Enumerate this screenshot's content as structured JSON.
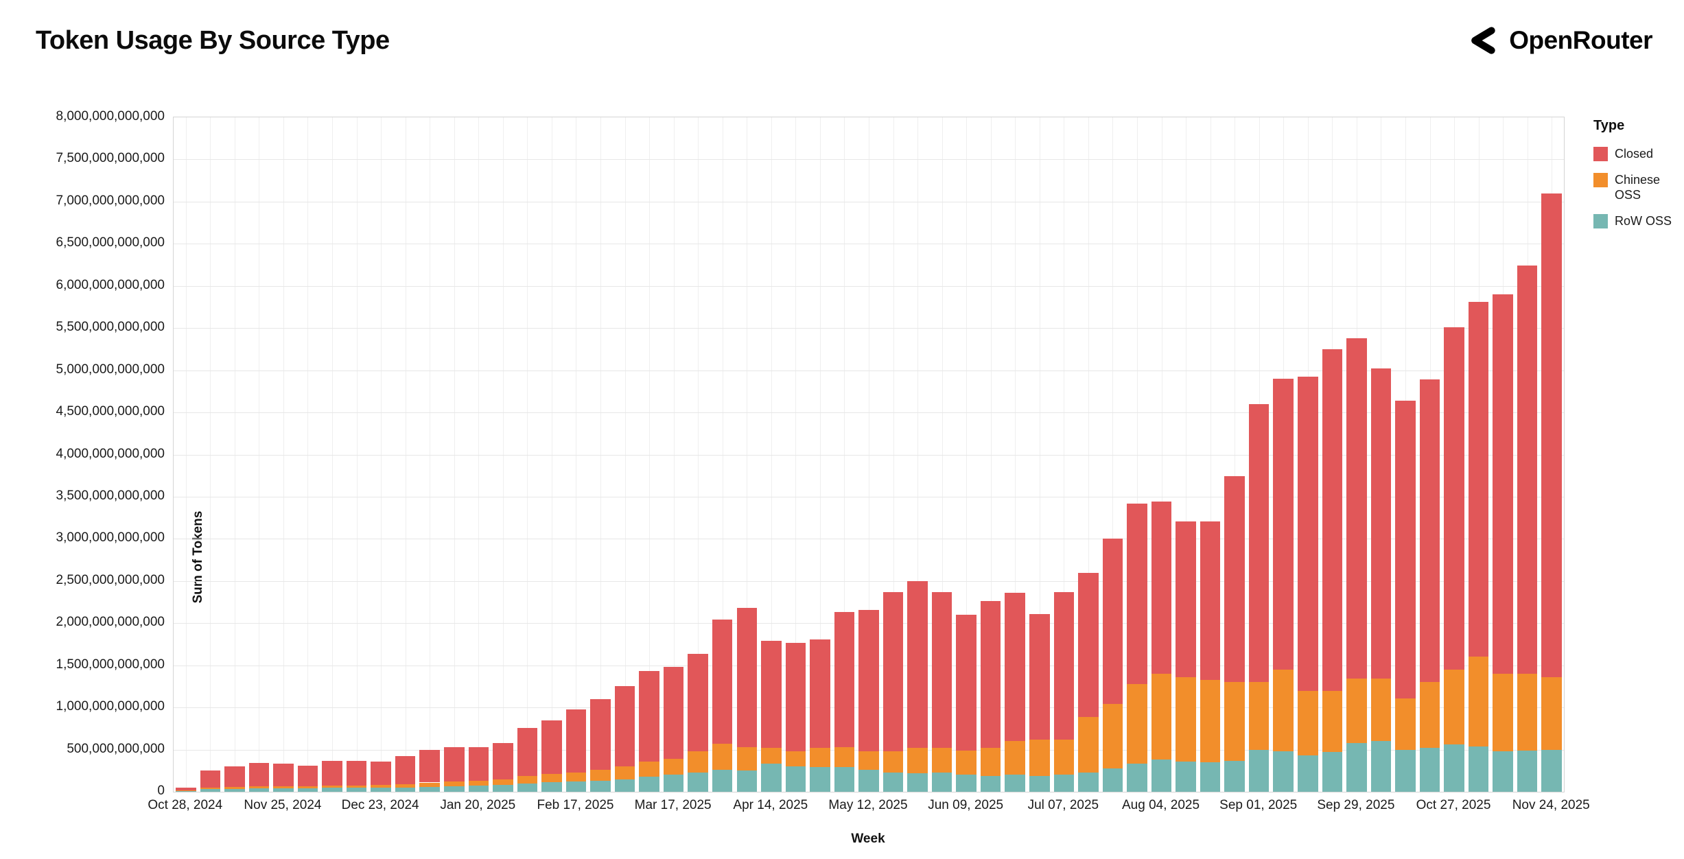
{
  "header": {
    "title": "Token Usage By Source Type",
    "brand": "OpenRouter"
  },
  "chart_data": {
    "type": "bar",
    "stacked": true,
    "title": "Token Usage By Source Type",
    "xlabel": "Week",
    "ylabel": "Sum of Tokens",
    "values_unit": "billions of tokens",
    "ylim_billions": [
      0,
      8000
    ],
    "y_tick_step_billions": 500,
    "y_tick_labels": [
      "0",
      "500,000,000,000",
      "1,000,000,000,000",
      "1,500,000,000,000",
      "2,000,000,000,000",
      "2,500,000,000,000",
      "3,000,000,000,000",
      "3,500,000,000,000",
      "4,000,000,000,000",
      "4,500,000,000,000",
      "5,000,000,000,000",
      "5,500,000,000,000",
      "6,000,000,000,000",
      "6,500,000,000,000",
      "7,000,000,000,000",
      "7,500,000,000,000",
      "8,000,000,000,000"
    ],
    "x_tick_every": 4,
    "grid": true,
    "legend_position": "right",
    "categories": [
      "Oct 28, 2024",
      "Nov 04, 2024",
      "Nov 11, 2024",
      "Nov 18, 2024",
      "Nov 25, 2024",
      "Dec 02, 2024",
      "Dec 09, 2024",
      "Dec 16, 2024",
      "Dec 23, 2024",
      "Dec 30, 2024",
      "Jan 06, 2025",
      "Jan 13, 2025",
      "Jan 20, 2025",
      "Jan 27, 2025",
      "Feb 03, 2025",
      "Feb 10, 2025",
      "Feb 17, 2025",
      "Feb 24, 2025",
      "Mar 03, 2025",
      "Mar 10, 2025",
      "Mar 17, 2025",
      "Mar 24, 2025",
      "Mar 31, 2025",
      "Apr 07, 2025",
      "Apr 14, 2025",
      "Apr 21, 2025",
      "Apr 28, 2025",
      "May 05, 2025",
      "May 12, 2025",
      "May 19, 2025",
      "May 26, 2025",
      "Jun 02, 2025",
      "Jun 09, 2025",
      "Jun 16, 2025",
      "Jun 23, 2025",
      "Jun 30, 2025",
      "Jul 07, 2025",
      "Jul 14, 2025",
      "Jul 21, 2025",
      "Jul 28, 2025",
      "Aug 04, 2025",
      "Aug 11, 2025",
      "Aug 18, 2025",
      "Aug 25, 2025",
      "Sep 01, 2025",
      "Sep 08, 2025",
      "Sep 15, 2025",
      "Sep 22, 2025",
      "Sep 29, 2025",
      "Oct 06, 2025",
      "Oct 13, 2025",
      "Oct 20, 2025",
      "Oct 27, 2025",
      "Nov 03, 2025",
      "Nov 10, 2025",
      "Nov 17, 2025",
      "Nov 24, 2025"
    ],
    "series": [
      {
        "name": "RoW OSS",
        "color": "#76b7b2",
        "values_billions": [
          10,
          30,
          35,
          40,
          40,
          40,
          45,
          45,
          50,
          50,
          60,
          65,
          70,
          80,
          100,
          110,
          120,
          130,
          150,
          180,
          200,
          230,
          260,
          250,
          330,
          300,
          290,
          290,
          260,
          230,
          220,
          230,
          200,
          190,
          200,
          190,
          200,
          230,
          280,
          330,
          380,
          360,
          350,
          370,
          500,
          480,
          430,
          470,
          580,
          600,
          500,
          520,
          560,
          540,
          480,
          490,
          500
        ]
      },
      {
        "name": "Chinese OSS",
        "color": "#f28e2b",
        "values_billions": [
          5,
          15,
          20,
          25,
          25,
          25,
          30,
          30,
          30,
          40,
          50,
          55,
          60,
          70,
          90,
          100,
          110,
          130,
          150,
          180,
          190,
          250,
          310,
          280,
          190,
          180,
          230,
          240,
          220,
          250,
          300,
          290,
          290,
          330,
          400,
          430,
          420,
          660,
          760,
          950,
          1020,
          1000,
          980,
          930,
          800,
          970,
          770,
          730,
          760,
          740,
          610,
          780,
          890,
          1060,
          920,
          910,
          860
        ]
      },
      {
        "name": "Closed",
        "color": "#e15759",
        "values_billions": [
          35,
          205,
          245,
          275,
          265,
          245,
          295,
          295,
          280,
          330,
          390,
          410,
          400,
          430,
          570,
          640,
          750,
          840,
          950,
          1070,
          1090,
          1160,
          1470,
          1650,
          1270,
          1290,
          1290,
          1600,
          1680,
          1890,
          1980,
          1850,
          1610,
          1740,
          1760,
          1490,
          1750,
          1710,
          1960,
          2140,
          2040,
          1850,
          1880,
          2440,
          3300,
          3450,
          3720,
          4050,
          4040,
          3680,
          3530,
          3590,
          4060,
          4210,
          4500,
          4840,
          5740
        ]
      }
    ],
    "legend": {
      "title": "Type",
      "entries": [
        {
          "label": "Closed",
          "color": "#e15759"
        },
        {
          "label": "Chinese OSS",
          "color": "#f28e2b"
        },
        {
          "label": "RoW OSS",
          "color": "#76b7b2"
        }
      ]
    }
  }
}
